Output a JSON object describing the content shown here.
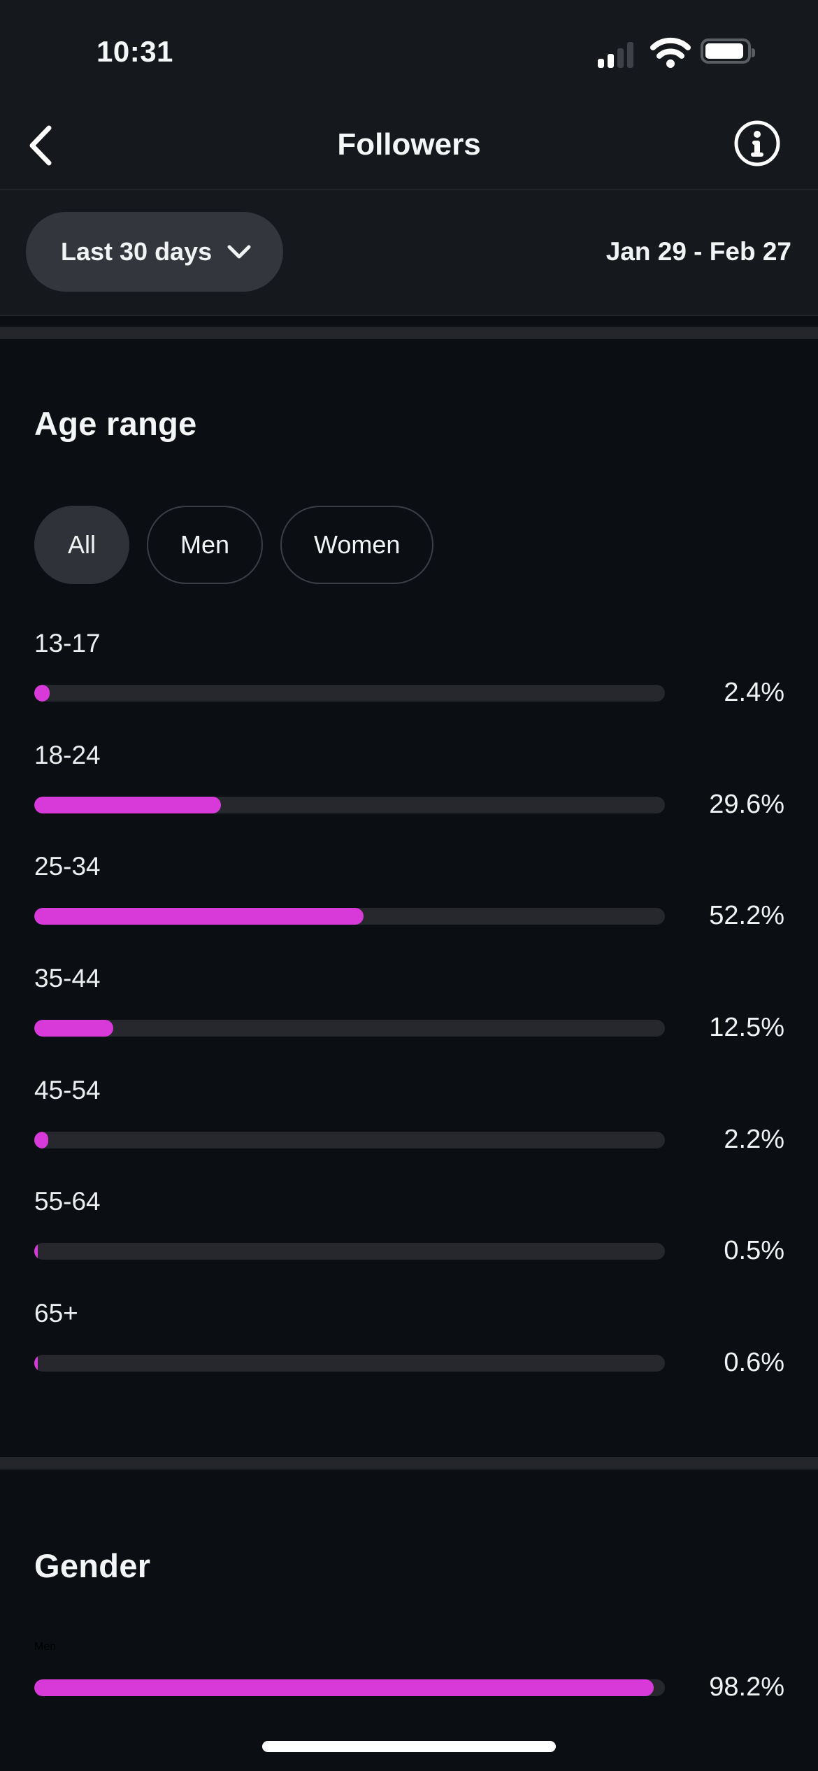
{
  "status_bar": {
    "time": "10:31",
    "signal_bars_lit": 2,
    "wifi": "full",
    "battery_level_pct": 85
  },
  "header": {
    "title": "Followers"
  },
  "filter": {
    "range_label": "Last 30 days",
    "date_range": "Jan 29 - Feb 27"
  },
  "age_section": {
    "title": "Age range",
    "tabs": [
      "All",
      "Men",
      "Women"
    ],
    "selected_tab": "All"
  },
  "gender_section": {
    "title": "Gender"
  },
  "chart_data": [
    {
      "type": "bar",
      "orientation": "horizontal",
      "title": "Age range",
      "categories": [
        "13-17",
        "18-24",
        "25-34",
        "35-44",
        "45-54",
        "55-64",
        "65+"
      ],
      "values": [
        2.4,
        29.6,
        52.2,
        12.5,
        2.2,
        0.5,
        0.6
      ],
      "value_labels": [
        "2.4%",
        "29.6%",
        "52.2%",
        "12.5%",
        "2.2%",
        "0.5%",
        "0.6%"
      ],
      "unit": "%",
      "xlim": [
        0,
        100
      ],
      "bar_color": "#d73ad8",
      "track_color": "#26282e"
    },
    {
      "type": "bar",
      "orientation": "horizontal",
      "title": "Gender",
      "categories": [
        "Men"
      ],
      "values": [
        98.2
      ],
      "value_labels": [
        "98.2%"
      ],
      "unit": "%",
      "xlim": [
        0,
        100
      ],
      "bar_color": "#d73ad8",
      "track_color": "#26282e",
      "note": "row partially clipped by bottom safe area"
    }
  ],
  "icons": {
    "back": "chevron-left",
    "info": "letter-i-in-circle",
    "range_dropdown": "chevron-down",
    "status": [
      "cellular-signal",
      "wifi",
      "battery"
    ]
  },
  "colors": {
    "accent": "#d73ad8",
    "background": "#0b0e12",
    "top_zone_background": "#15181c",
    "band": "#24262b",
    "track": "#26282e",
    "pill_selected": "#2f3238",
    "pill_border": "#3b3e45",
    "text_primary": "#f4f5f6"
  },
  "system": {
    "home_indicator": true
  }
}
